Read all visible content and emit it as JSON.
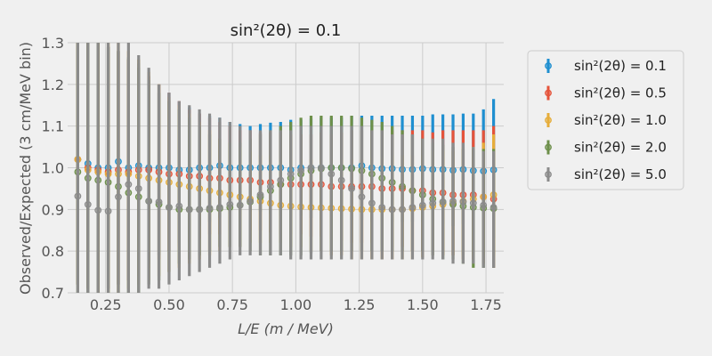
{
  "chart_data": {
    "type": "scatter",
    "title": "sin²(2θ) = 0.1",
    "xlabel": "L/E (m / MeV)",
    "ylabel": "Observed/Expected (3 cm/MeV bin)",
    "xlim": [
      0.1,
      1.82
    ],
    "ylim": [
      0.7,
      1.3
    ],
    "xticks": [
      "0.25",
      "0.50",
      "0.75",
      "1.00",
      "1.25",
      "1.50",
      "1.75"
    ],
    "xtick_values": [
      0.25,
      0.5,
      0.75,
      1.0,
      1.25,
      1.5,
      1.75
    ],
    "yticks": [
      "0.7",
      "0.8",
      "0.9",
      "1.0",
      "1.1",
      "1.2",
      "1.3"
    ],
    "ytick_values": [
      0.7,
      0.8,
      0.9,
      1.0,
      1.1,
      1.2,
      1.3
    ],
    "grid": true,
    "legend_position": "right, outside plot",
    "x": [
      0.14,
      0.18,
      0.22,
      0.26,
      0.3,
      0.34,
      0.38,
      0.42,
      0.46,
      0.5,
      0.54,
      0.58,
      0.62,
      0.66,
      0.7,
      0.74,
      0.78,
      0.82,
      0.86,
      0.9,
      0.94,
      0.98,
      1.02,
      1.06,
      1.1,
      1.14,
      1.18,
      1.22,
      1.26,
      1.3,
      1.34,
      1.38,
      1.42,
      1.46,
      1.5,
      1.54,
      1.58,
      1.62,
      1.66,
      1.7,
      1.74,
      1.78
    ],
    "series": [
      {
        "name": "sin²(2θ) = 0.1",
        "color": "#1f8fd0",
        "values": [
          1.02,
          1.01,
          1.0,
          1.0,
          1.015,
          1.0,
          1.005,
          1.0,
          1.0,
          1.0,
          0.995,
          0.995,
          1.0,
          1.0,
          1.005,
          1.0,
          1.0,
          1.0,
          1.0,
          1.0,
          1.0,
          0.995,
          1.0,
          1.0,
          1.0,
          1.0,
          1.0,
          1.0,
          1.005,
          1.0,
          0.998,
          0.998,
          0.996,
          0.996,
          0.998,
          0.996,
          0.996,
          0.994,
          0.996,
          0.993,
          0.992,
          0.995
        ],
        "err_upper": [
          1.32,
          1.31,
          1.3,
          1.29,
          1.28,
          1.265,
          1.25,
          1.22,
          1.2,
          1.18,
          1.16,
          1.145,
          1.13,
          1.125,
          1.12,
          1.11,
          1.105,
          1.1,
          1.105,
          1.108,
          1.11,
          1.115,
          1.115,
          1.118,
          1.12,
          1.12,
          1.12,
          1.125,
          1.125,
          1.125,
          1.125,
          1.125,
          1.125,
          1.125,
          1.125,
          1.128,
          1.128,
          1.128,
          1.13,
          1.13,
          1.14,
          1.165
        ],
        "err_lower": [
          0.72,
          0.71,
          0.7,
          0.71,
          0.72,
          0.73,
          0.75,
          0.77,
          0.79,
          0.8,
          0.82,
          0.84,
          0.86,
          0.87,
          0.88,
          0.89,
          0.89,
          0.895,
          0.895,
          0.89,
          0.885,
          0.88,
          0.885,
          0.88,
          0.875,
          0.88,
          0.875,
          0.875,
          0.875,
          0.87,
          0.87,
          0.87,
          0.87,
          0.87,
          0.87,
          0.865,
          0.865,
          0.86,
          0.865,
          0.86,
          0.85,
          0.83
        ]
      },
      {
        "name": "sin²(2θ) = 0.5",
        "color": "#e5533a",
        "values": [
          1.02,
          1.0,
          0.995,
          0.99,
          0.995,
          0.99,
          0.995,
          0.995,
          0.99,
          0.985,
          0.985,
          0.98,
          0.98,
          0.975,
          0.975,
          0.97,
          0.97,
          0.97,
          0.965,
          0.965,
          0.96,
          0.96,
          0.96,
          0.96,
          0.96,
          0.955,
          0.955,
          0.955,
          0.955,
          0.955,
          0.95,
          0.95,
          0.95,
          0.945,
          0.945,
          0.94,
          0.94,
          0.935,
          0.935,
          0.935,
          0.93,
          0.925
        ],
        "err_upper": [
          1.32,
          1.31,
          1.3,
          1.29,
          1.28,
          1.26,
          1.24,
          1.22,
          1.2,
          1.18,
          1.16,
          1.14,
          1.13,
          1.12,
          1.11,
          1.1,
          1.09,
          1.09,
          1.085,
          1.085,
          1.085,
          1.08,
          1.08,
          1.08,
          1.085,
          1.08,
          1.085,
          1.09,
          1.09,
          1.09,
          1.09,
          1.09,
          1.09,
          1.09,
          1.09,
          1.085,
          1.09,
          1.09,
          1.09,
          1.09,
          1.09,
          1.1
        ],
        "err_lower": [
          0.72,
          0.71,
          0.7,
          0.71,
          0.72,
          0.73,
          0.74,
          0.76,
          0.78,
          0.8,
          0.81,
          0.82,
          0.83,
          0.84,
          0.84,
          0.85,
          0.85,
          0.85,
          0.85,
          0.845,
          0.84,
          0.84,
          0.84,
          0.835,
          0.835,
          0.83,
          0.825,
          0.82,
          0.82,
          0.82,
          0.815,
          0.81,
          0.81,
          0.8,
          0.8,
          0.8,
          0.79,
          0.79,
          0.78,
          0.78,
          0.77,
          0.76
        ]
      },
      {
        "name": "sin²(2θ) = 1.0",
        "color": "#e6ad3a",
        "values": [
          1.02,
          0.995,
          0.99,
          0.985,
          0.985,
          0.985,
          0.98,
          0.975,
          0.97,
          0.965,
          0.96,
          0.955,
          0.95,
          0.945,
          0.94,
          0.935,
          0.93,
          0.925,
          0.92,
          0.915,
          0.91,
          0.908,
          0.906,
          0.905,
          0.904,
          0.903,
          0.902,
          0.901,
          0.9,
          0.9,
          0.9,
          0.9,
          0.9,
          0.902,
          0.905,
          0.908,
          0.912,
          0.915,
          0.92,
          0.925,
          0.93,
          0.935
        ],
        "err_upper": [
          1.32,
          1.31,
          1.3,
          1.3,
          1.3,
          1.28,
          1.26,
          1.23,
          1.2,
          1.17,
          1.15,
          1.13,
          1.11,
          1.09,
          1.07,
          1.06,
          1.05,
          1.04,
          1.03,
          1.03,
          1.02,
          1.02,
          1.02,
          1.02,
          1.02,
          1.02,
          1.02,
          1.02,
          1.02,
          1.025,
          1.025,
          1.03,
          1.03,
          1.03,
          1.03,
          1.04,
          1.04,
          1.04,
          1.05,
          1.05,
          1.06,
          1.08
        ],
        "err_lower": [
          0.72,
          0.71,
          0.7,
          0.7,
          0.7,
          0.71,
          0.72,
          0.73,
          0.74,
          0.75,
          0.76,
          0.77,
          0.78,
          0.79,
          0.8,
          0.81,
          0.81,
          0.82,
          0.82,
          0.82,
          0.82,
          0.81,
          0.81,
          0.8,
          0.8,
          0.79,
          0.79,
          0.78,
          0.78,
          0.78,
          0.78,
          0.78,
          0.78,
          0.78,
          0.785,
          0.79,
          0.79,
          0.79,
          0.79,
          0.79,
          0.79,
          0.79
        ]
      },
      {
        "name": "sin²(2θ) = 2.0",
        "color": "#6d8f4a",
        "values": [
          0.99,
          0.975,
          0.97,
          0.965,
          0.955,
          0.94,
          0.93,
          0.92,
          0.912,
          0.905,
          0.9,
          0.9,
          0.9,
          0.9,
          0.902,
          0.905,
          0.91,
          0.918,
          0.93,
          0.945,
          0.96,
          0.975,
          0.985,
          0.993,
          0.998,
          1.0,
          1.0,
          0.998,
          0.993,
          0.985,
          0.975,
          0.965,
          0.955,
          0.945,
          0.935,
          0.925,
          0.918,
          0.912,
          0.908,
          0.905,
          0.903,
          0.902
        ],
        "err_upper": [
          1.32,
          1.31,
          1.3,
          1.29,
          1.28,
          1.26,
          1.24,
          1.21,
          1.18,
          1.16,
          1.14,
          1.12,
          1.1,
          1.08,
          1.07,
          1.06,
          1.06,
          1.07,
          1.08,
          1.09,
          1.1,
          1.11,
          1.12,
          1.125,
          1.125,
          1.125,
          1.125,
          1.125,
          1.12,
          1.115,
          1.11,
          1.1,
          1.09,
          1.08,
          1.07,
          1.06,
          1.055,
          1.05,
          1.045,
          1.045,
          1.045,
          1.045
        ],
        "err_lower": [
          0.7,
          0.69,
          0.69,
          0.69,
          0.69,
          0.7,
          0.7,
          0.72,
          0.73,
          0.75,
          0.77,
          0.78,
          0.79,
          0.8,
          0.81,
          0.81,
          0.81,
          0.8,
          0.79,
          0.79,
          0.79,
          0.79,
          0.79,
          0.795,
          0.8,
          0.8,
          0.8,
          0.8,
          0.8,
          0.8,
          0.8,
          0.8,
          0.8,
          0.8,
          0.8,
          0.79,
          0.78,
          0.78,
          0.77,
          0.76,
          0.76,
          0.76
        ]
      },
      {
        "name": "sin²(2θ) = 5.0",
        "color": "#8b8b8b",
        "values": [
          0.932,
          0.912,
          0.898,
          0.896,
          0.93,
          0.96,
          0.95,
          0.92,
          0.918,
          0.905,
          0.908,
          0.9,
          0.9,
          0.903,
          0.905,
          0.912,
          0.91,
          0.92,
          0.935,
          0.955,
          0.97,
          0.985,
          0.993,
          1.0,
          1.0,
          0.985,
          0.97,
          0.95,
          0.93,
          0.915,
          0.905,
          0.9,
          0.9,
          0.905,
          0.91,
          0.915,
          0.918,
          0.92,
          0.918,
          0.915,
          0.91,
          0.905
        ],
        "err_upper": [
          1.3,
          1.3,
          1.3,
          1.3,
          1.3,
          1.3,
          1.27,
          1.24,
          1.2,
          1.18,
          1.16,
          1.15,
          1.14,
          1.13,
          1.12,
          1.11,
          1.1,
          1.09,
          1.09,
          1.09,
          1.09,
          1.09,
          1.1,
          1.1,
          1.1,
          1.1,
          1.1,
          1.1,
          1.1,
          1.09,
          1.09,
          1.08,
          1.08,
          1.08,
          1.07,
          1.07,
          1.07,
          1.06,
          1.06,
          1.05,
          1.04,
          1.04
        ],
        "err_lower": [
          0.7,
          0.7,
          0.7,
          0.7,
          0.7,
          0.7,
          0.7,
          0.71,
          0.71,
          0.72,
          0.73,
          0.74,
          0.75,
          0.76,
          0.77,
          0.78,
          0.79,
          0.79,
          0.79,
          0.79,
          0.79,
          0.78,
          0.78,
          0.78,
          0.78,
          0.78,
          0.78,
          0.78,
          0.78,
          0.78,
          0.78,
          0.78,
          0.78,
          0.78,
          0.78,
          0.78,
          0.78,
          0.77,
          0.77,
          0.77,
          0.76,
          0.76
        ]
      }
    ]
  }
}
